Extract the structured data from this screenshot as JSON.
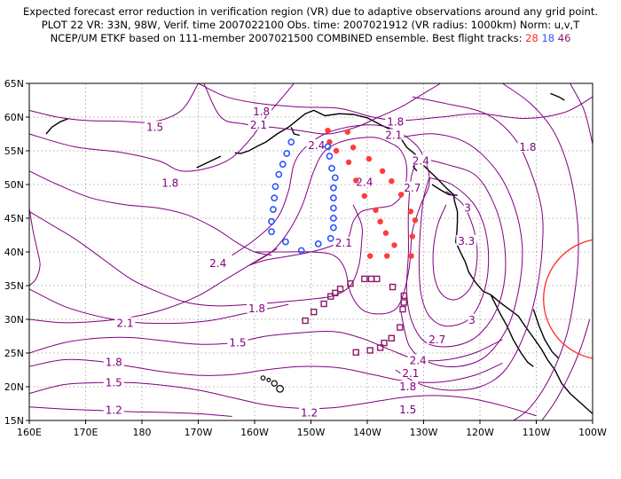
{
  "header": {
    "line1": "Expected forecast error reduction in verification region (VR) due to adaptive observations around any grid point.",
    "line2": "PLOT 22 VR: 33N, 98W, Verif. time 2007022100 Obs. time: 2007021912 (VR radius: 1000km) Norm: u,v,T",
    "line3_main": "NCEP/UM ETKF based on 111-member 2007021500 COMBINED ensemble.  Best flight tracks: ",
    "tracks": [
      {
        "label": "28",
        "color": "#ff2a2a"
      },
      {
        "label": "18",
        "color": "#3355ff"
      },
      {
        "label": "46",
        "color": "#8b1a6b"
      }
    ]
  },
  "map": {
    "lon_range": [
      160,
      260
    ],
    "lat_range": [
      15,
      65
    ],
    "lon_ticks": [
      "160E",
      "170E",
      "180",
      "170W",
      "160W",
      "150W",
      "140W",
      "130W",
      "120W",
      "110W",
      "100W"
    ],
    "lat_ticks": [
      "15N",
      "20N",
      "25N",
      "30N",
      "35N",
      "40N",
      "45N",
      "50N",
      "55N",
      "60N",
      "65N"
    ],
    "grid": true,
    "contour_color": "#800080",
    "contour_labels": [
      {
        "text": "1.8",
        "lon": 201.2,
        "lat": 60.8
      },
      {
        "text": "1.5",
        "lon": 182.3,
        "lat": 58.5
      },
      {
        "text": "2.1",
        "lon": 200.7,
        "lat": 58.8
      },
      {
        "text": "1.8",
        "lon": 225.0,
        "lat": 59.3
      },
      {
        "text": "2.4",
        "lon": 211.0,
        "lat": 55.8
      },
      {
        "text": "2.1",
        "lon": 224.7,
        "lat": 57.3
      },
      {
        "text": "1.8",
        "lon": 248.5,
        "lat": 55.5
      },
      {
        "text": "2.4",
        "lon": 229.5,
        "lat": 53.5
      },
      {
        "text": "1.8",
        "lon": 185.0,
        "lat": 50.2
      },
      {
        "text": "2.4",
        "lon": 219.5,
        "lat": 50.3
      },
      {
        "text": "2.7",
        "lon": 228.0,
        "lat": 49.5
      },
      {
        "text": "3",
        "lon": 237.8,
        "lat": 46.5
      },
      {
        "text": "3.3",
        "lon": 237.6,
        "lat": 41.6
      },
      {
        "text": "2.1",
        "lon": 215.8,
        "lat": 41.3
      },
      {
        "text": "2.4",
        "lon": 193.5,
        "lat": 38.3
      },
      {
        "text": "1.8",
        "lon": 200.4,
        "lat": 31.6
      },
      {
        "text": "2.1",
        "lon": 177.0,
        "lat": 29.4
      },
      {
        "text": "1.5",
        "lon": 197.0,
        "lat": 26.5
      },
      {
        "text": "3",
        "lon": 238.6,
        "lat": 29.9
      },
      {
        "text": "2.7",
        "lon": 232.4,
        "lat": 27.0
      },
      {
        "text": "2.4",
        "lon": 229.0,
        "lat": 23.9
      },
      {
        "text": "2.1",
        "lon": 227.7,
        "lat": 22.0
      },
      {
        "text": "1.8",
        "lon": 175.0,
        "lat": 23.6
      },
      {
        "text": "1.5",
        "lon": 175.0,
        "lat": 20.6
      },
      {
        "text": "1.8",
        "lon": 227.2,
        "lat": 20.0
      },
      {
        "text": "1.2",
        "lon": 175.0,
        "lat": 16.5
      },
      {
        "text": "1.2",
        "lon": 209.7,
        "lat": 16.1
      },
      {
        "text": "1.5",
        "lon": 227.2,
        "lat": 16.6
      }
    ],
    "verification_circle": {
      "center_lon": 262,
      "center_lat": 33,
      "color": "#ff2a2a"
    },
    "tracks": {
      "red": [
        [
          213.0,
          58.0
        ],
        [
          216.5,
          57.8
        ],
        [
          217.5,
          55.5
        ],
        [
          220.3,
          53.8
        ],
        [
          222.7,
          52.0
        ],
        [
          224.3,
          50.5
        ],
        [
          226.0,
          48.5
        ],
        [
          227.7,
          46.0
        ],
        [
          228.5,
          44.7
        ],
        [
          228.0,
          42.3
        ],
        [
          224.8,
          41.0
        ],
        [
          223.3,
          42.8
        ],
        [
          222.3,
          44.5
        ],
        [
          221.5,
          46.2
        ],
        [
          219.5,
          48.3
        ],
        [
          218.0,
          50.6
        ],
        [
          216.7,
          53.3
        ],
        [
          214.5,
          55.0
        ],
        [
          213.3,
          56.3
        ],
        [
          220.5,
          39.4
        ],
        [
          223.5,
          39.4
        ],
        [
          227.8,
          39.4
        ]
      ],
      "blue": [
        [
          206.5,
          56.3
        ],
        [
          205.7,
          54.6
        ],
        [
          205.0,
          53.0
        ],
        [
          204.3,
          51.5
        ],
        [
          203.7,
          49.7
        ],
        [
          203.5,
          48.0
        ],
        [
          203.3,
          46.3
        ],
        [
          203.0,
          44.5
        ],
        [
          203.0,
          43.0
        ],
        [
          205.5,
          41.5
        ],
        [
          208.3,
          40.2
        ],
        [
          211.3,
          41.2
        ],
        [
          213.5,
          42.0
        ],
        [
          214.0,
          43.6
        ],
        [
          214.0,
          45.0
        ],
        [
          214.0,
          46.5
        ],
        [
          214.0,
          48.0
        ],
        [
          214.0,
          49.5
        ],
        [
          214.3,
          51.0
        ],
        [
          213.7,
          52.4
        ],
        [
          213.3,
          54.2
        ],
        [
          213.0,
          55.6
        ]
      ],
      "purple": [
        [
          209.0,
          29.8
        ],
        [
          210.5,
          31.1
        ],
        [
          212.3,
          32.3
        ],
        [
          213.5,
          33.4
        ],
        [
          214.3,
          33.9
        ],
        [
          215.2,
          34.5
        ],
        [
          217.0,
          35.3
        ],
        [
          219.5,
          36.0
        ],
        [
          220.7,
          36.0
        ],
        [
          221.7,
          36.0
        ],
        [
          224.5,
          34.8
        ],
        [
          226.5,
          33.5
        ],
        [
          226.5,
          32.5
        ],
        [
          226.3,
          31.5
        ],
        [
          225.8,
          28.8
        ],
        [
          224.3,
          27.2
        ],
        [
          223.0,
          26.5
        ],
        [
          222.3,
          25.8
        ],
        [
          220.5,
          25.4
        ],
        [
          218.0,
          25.1
        ]
      ]
    },
    "islands": [
      {
        "lon": 201.5,
        "lat": 21.3,
        "r": 0.6
      },
      {
        "lon": 202.5,
        "lat": 21.0,
        "r": 0.5
      },
      {
        "lon": 203.5,
        "lat": 20.5,
        "r": 0.8
      },
      {
        "lon": 204.5,
        "lat": 19.7,
        "r": 1.0
      }
    ]
  }
}
